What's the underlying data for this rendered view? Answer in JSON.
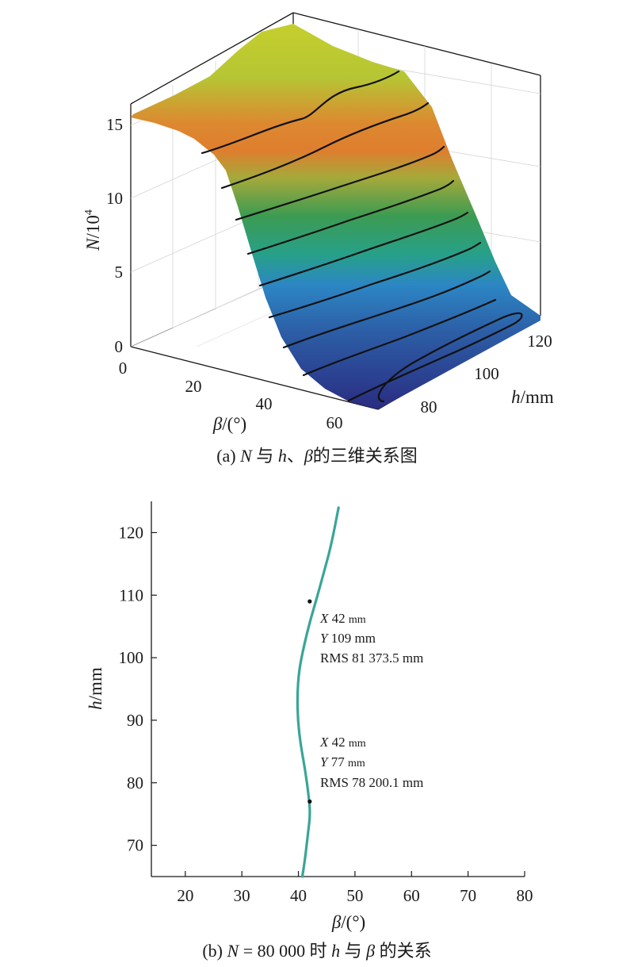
{
  "chart_data": [
    {
      "type": "surface",
      "caption_a": "(a) ",
      "caption_b": "N",
      "caption_c": " 与 ",
      "caption_d": "h",
      "caption_e": "、",
      "caption_f": "β",
      "caption_g": "的三维关系图",
      "zlabel_a": "N",
      "zlabel_b": "/10",
      "zlabel_c": "4",
      "xlabel_a": "β",
      "xlabel_b": "/(°)",
      "ylabel_a": "h",
      "ylabel_b": "/mm",
      "x_range": [
        0,
        65
      ],
      "y_range": [
        75,
        125
      ],
      "z_range": [
        0,
        16
      ],
      "x_ticks": [
        "0",
        "20",
        "40",
        "60"
      ],
      "y_ticks": [
        "80",
        "100",
        "120"
      ],
      "z_ticks": [
        "0",
        "5",
        "10",
        "15"
      ],
      "grid": true,
      "colormap": "parula",
      "surface_profile": {
        "beta": [
          0,
          10,
          20,
          25,
          30,
          35,
          40,
          45,
          50,
          55,
          60,
          65
        ],
        "N": [
          15.5,
          15.3,
          14.8,
          13.5,
          11.0,
          8.0,
          5.5,
          3.5,
          2.0,
          1.0,
          0.5,
          0.3
        ]
      }
    },
    {
      "type": "line",
      "caption_a": "(b) ",
      "caption_b": "N",
      "caption_c": " = 80 000 时 ",
      "caption_d": "h",
      "caption_e": " 与 ",
      "caption_f": "β",
      "caption_g": " 的关系",
      "xlabel_a": "β",
      "xlabel_b": "/(°)",
      "ylabel_a": "h",
      "ylabel_b": "/mm",
      "xlim": [
        14,
        80
      ],
      "ylim": [
        65,
        125
      ],
      "x_ticks": [
        20,
        30,
        40,
        50,
        60,
        70,
        80
      ],
      "y_ticks": [
        70,
        80,
        90,
        100,
        110,
        120
      ],
      "color": "#3aa597",
      "series": [
        {
          "x": [
            40.7,
            41.2,
            41.7,
            42.1,
            41.8,
            41.2,
            40.4,
            39.9,
            39.8,
            40.1,
            41.0,
            42.1,
            43.4,
            44.6,
            45.8,
            47.1
          ],
          "y": [
            65,
            68,
            72,
            75,
            78,
            82,
            86,
            90,
            94,
            98,
            102,
            106,
            110,
            114,
            118,
            124
          ]
        }
      ],
      "annotations": [
        {
          "x": 42,
          "y": 109,
          "x_label": "X",
          "x_value": " 42 ",
          "x_unit": "mm",
          "y_label": "Y",
          "y_value": " 109 mm",
          "rms": "RMS 81 373.5 mm"
        },
        {
          "x": 42,
          "y": 77,
          "x_label": "X",
          "x_value": " 42 ",
          "x_unit": "mm",
          "y_label": "Y",
          "y_value": " 77 ",
          "y_unit": "mm",
          "rms": "RMS 78 200.1 mm"
        }
      ]
    }
  ]
}
